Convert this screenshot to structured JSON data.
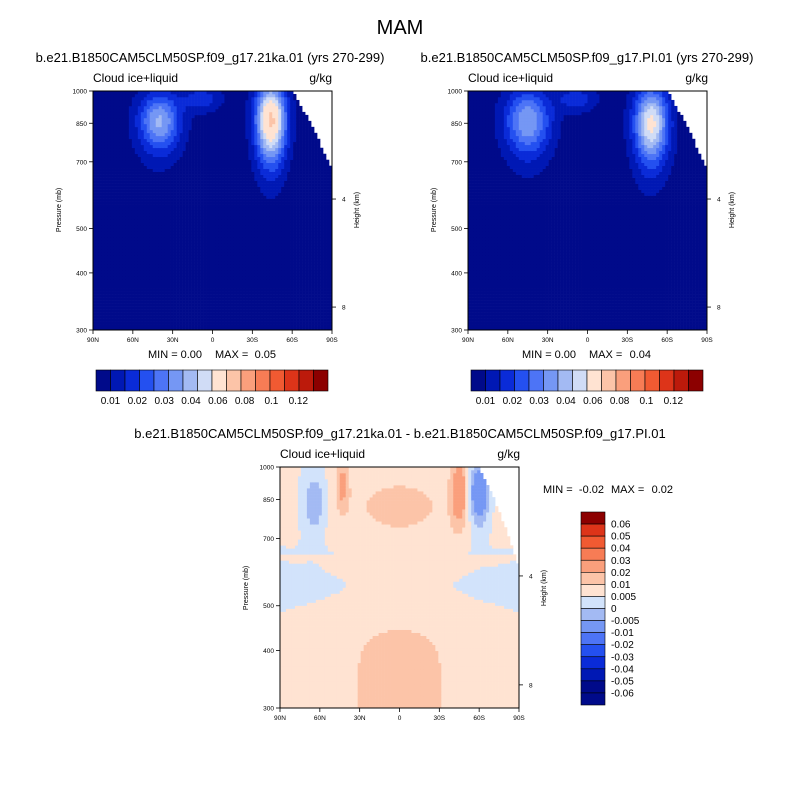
{
  "figure": {
    "title": "MAM",
    "diff_title": "b.e21.B1850CAM5CLM50SP.f09_g17.21ka.01 - b.e21.B1850CAM5CLM50SP.f09_g17.PI.01"
  },
  "common": {
    "variable_label": "Cloud ice+liquid",
    "units_label": "g/kg",
    "y_axis_label": "Pressure (mb)",
    "y2_axis_label": "Height (km)",
    "min_label": "MIN =",
    "max_label": "MAX ="
  },
  "colors": {
    "abs_scale": [
      "#000a8a",
      "#0018b4",
      "#0a2bd8",
      "#2450f0",
      "#4d74f6",
      "#7597f4",
      "#a3baf3",
      "#d0dcf6",
      "#ffe3d2",
      "#fcc4a8",
      "#fa9f7c",
      "#f77c55",
      "#f15a32",
      "#dd3419",
      "#bc1a0b",
      "#8c0000"
    ],
    "diff_scale": [
      "#000a8a",
      "#0018b4",
      "#0a2bd8",
      "#2450f0",
      "#4d74f6",
      "#7597f4",
      "#a3baf3",
      "#d2e3fb",
      "#ffe3d2",
      "#fcc4a8",
      "#fa9f7c",
      "#f77c55",
      "#f15a32",
      "#dd3419",
      "#8c0000"
    ]
  },
  "chart_data": [
    {
      "id": "panel_21ka",
      "type": "heatmap",
      "title": "b.e21.B1850CAM5CLM50SP.f09_g17.21ka.01 (yrs 270-299)",
      "x_ticks": [
        "90N",
        "60N",
        "30N",
        "0",
        "30S",
        "60S",
        "90S"
      ],
      "x_values": [
        90,
        60,
        30,
        0,
        -30,
        -60,
        -90
      ],
      "y_ticks": [
        300,
        400,
        500,
        700,
        850,
        1000
      ],
      "y_tick_labels": [
        "300",
        "400",
        "500",
        "700",
        "850",
        "1000"
      ],
      "ylim": [
        1000,
        300
      ],
      "height_ticks_km": [
        4,
        8
      ],
      "height_tick_labels": [
        "4",
        "8"
      ],
      "min_value": "0.00",
      "max_value": "0.05",
      "colorbar_labels": [
        "0.01",
        "0.02",
        "0.03",
        "0.04",
        "0.06",
        "0.08",
        "0.1",
        "0.12"
      ],
      "contour_levels": [
        0.005,
        0.01,
        0.015,
        0.02,
        0.025,
        0.03,
        0.035,
        0.04,
        0.05,
        0.06,
        0.07,
        0.08,
        0.09,
        0.1,
        0.12
      ],
      "features": [
        {
          "name": "north-midlatitude low cloud",
          "lat": 40,
          "p": 860,
          "dlat": 11,
          "dp": 90,
          "peak": 0.029
        },
        {
          "name": "equatorial shallow",
          "lat": 8,
          "p": 960,
          "dlat": 10,
          "dp": 40,
          "peak": 0.012
        },
        {
          "name": "southern-ocean low cloud",
          "lat": -44,
          "p": 865,
          "dlat": 8,
          "dp": 120,
          "peak": 0.05
        }
      ]
    },
    {
      "id": "panel_PI",
      "type": "heatmap",
      "title": "b.e21.B1850CAM5CLM50SP.f09_g17.PI.01 (yrs 270-299)",
      "x_ticks": [
        "90N",
        "60N",
        "30N",
        "0",
        "30S",
        "60S",
        "90S"
      ],
      "x_values": [
        90,
        60,
        30,
        0,
        -30,
        -60,
        -90
      ],
      "y_ticks": [
        300,
        400,
        500,
        700,
        850,
        1000
      ],
      "y_tick_labels": [
        "300",
        "400",
        "500",
        "700",
        "850",
        "1000"
      ],
      "ylim": [
        1000,
        300
      ],
      "height_ticks_km": [
        4,
        8
      ],
      "height_tick_labels": [
        "4",
        "8"
      ],
      "min_value": "0.00",
      "max_value": "0.04",
      "colorbar_labels": [
        "0.01",
        "0.02",
        "0.03",
        "0.04",
        "0.06",
        "0.08",
        "0.1",
        "0.12"
      ],
      "contour_levels": [
        0.005,
        0.01,
        0.015,
        0.02,
        0.025,
        0.03,
        0.035,
        0.04,
        0.05,
        0.06,
        0.07,
        0.08,
        0.09,
        0.1,
        0.12
      ],
      "features": [
        {
          "name": "north-midlatitude low cloud",
          "lat": 45,
          "p": 860,
          "dlat": 12,
          "dp": 100,
          "peak": 0.028
        },
        {
          "name": "equatorial shallow",
          "lat": 8,
          "p": 960,
          "dlat": 10,
          "dp": 40,
          "peak": 0.012
        },
        {
          "name": "southern-ocean low cloud",
          "lat": -48,
          "p": 850,
          "dlat": 9,
          "dp": 115,
          "peak": 0.04
        }
      ]
    },
    {
      "id": "panel_diff",
      "type": "heatmap",
      "title": "b.e21.B1850CAM5CLM50SP.f09_g17.21ka.01 - b.e21.B1850CAM5CLM50SP.f09_g17.PI.01",
      "x_ticks": [
        "90N",
        "60N",
        "30N",
        "0",
        "30S",
        "60S",
        "90S"
      ],
      "x_values": [
        90,
        60,
        30,
        0,
        -30,
        -60,
        -90
      ],
      "y_ticks": [
        300,
        400,
        500,
        700,
        850,
        1000
      ],
      "y_tick_labels": [
        "300",
        "400",
        "500",
        "700",
        "850",
        "1000"
      ],
      "ylim": [
        1000,
        300
      ],
      "height_ticks_km": [
        4,
        8
      ],
      "height_tick_labels": [
        "4",
        "8"
      ],
      "min_value": "-0.02",
      "max_value": "0.02",
      "colorbar_labels": [
        "0.06",
        "0.05",
        "0.04",
        "0.03",
        "0.02",
        "0.01",
        "0.005",
        "0",
        "-0.005",
        "-0.01",
        "-0.02",
        "-0.03",
        "-0.04",
        "-0.05",
        "-0.06"
      ],
      "contour_levels": [
        -0.06,
        -0.05,
        -0.04,
        -0.03,
        -0.02,
        -0.01,
        -0.005,
        0,
        0.005,
        0.01,
        0.02,
        0.03,
        0.04,
        0.05,
        0.06
      ],
      "features": [
        {
          "name": "northern negative",
          "lat": 64,
          "p": 840,
          "dlat": 6,
          "dp": 90,
          "peak": -0.011
        },
        {
          "name": "southern negative",
          "lat": -60,
          "p": 880,
          "dlat": 5,
          "dp": 90,
          "peak": -0.022
        },
        {
          "name": "southern positive",
          "lat": -45,
          "p": 890,
          "dlat": 4,
          "dp": 95,
          "peak": 0.016
        },
        {
          "name": "northern positive",
          "lat": 43,
          "p": 920,
          "dlat": 3,
          "dp": 70,
          "peak": 0.011
        }
      ]
    }
  ]
}
